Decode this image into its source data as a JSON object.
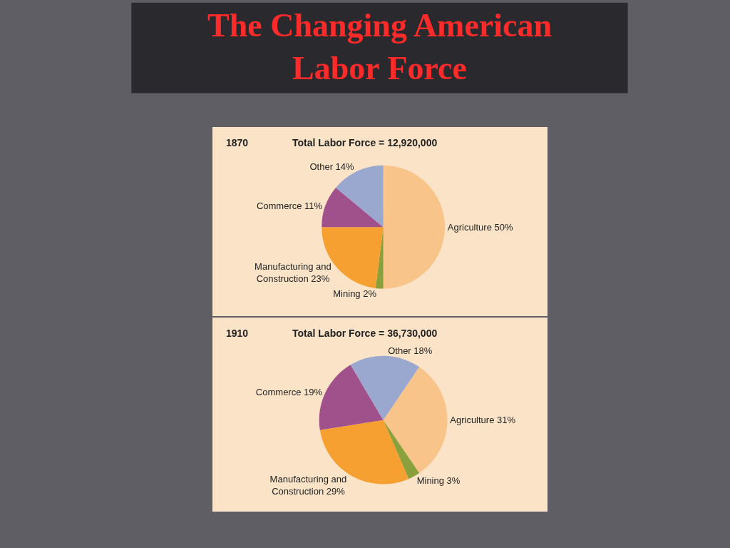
{
  "chart_data": [
    {
      "type": "pie",
      "title": "1870",
      "subtitle": "Total Labor Force = 12,920,000",
      "annotations": [
        "The Changing American Labor Force"
      ],
      "categories": [
        "Agriculture 50%",
        "Mining 2%",
        "Manufacturing and Construction 23%",
        "Commerce 11%",
        "Other 14%"
      ],
      "values": [
        50,
        2,
        23,
        11,
        14
      ],
      "colors": [
        "#f8c48a",
        "#8aa03c",
        "#f5a030",
        "#a0508a",
        "#9aa8d0"
      ]
    },
    {
      "type": "pie",
      "title": "1910",
      "subtitle": "Total Labor Force = 36,730,000",
      "categories": [
        "Agriculture 31%",
        "Mining 3%",
        "Manufacturing and Construction 29%",
        "Commerce 19%",
        "Other 18%"
      ],
      "values": [
        31,
        3,
        29,
        19,
        18
      ],
      "colors": [
        "#f8c48a",
        "#8aa03c",
        "#f5a030",
        "#a0508a",
        "#9aa8d0"
      ]
    }
  ]
}
